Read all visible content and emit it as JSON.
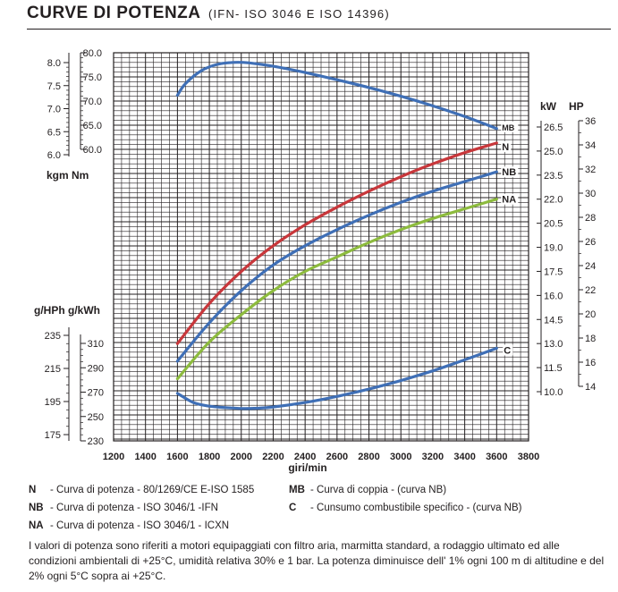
{
  "header": {
    "title": "CURVE DI POTENZA",
    "subtitle": "(IFN- ISO 3046 E ISO 14396)"
  },
  "chart_data": {
    "type": "line",
    "xlabel": "giri/min",
    "xlim": [
      1200,
      3800
    ],
    "x_ticks": [
      1200,
      1400,
      1600,
      1800,
      2000,
      2200,
      2400,
      2600,
      2800,
      3000,
      3200,
      3400,
      3600,
      3800
    ],
    "axes": {
      "torque_nm": {
        "ticks": [
          "80.0",
          "75.0",
          "70.0",
          "65.0",
          "60.0"
        ],
        "range": [
          60,
          80
        ]
      },
      "torque_kgm": {
        "ticks": [
          "8.0",
          "7.5",
          "7.0",
          "6.5",
          "6.0"
        ],
        "range": [
          6,
          8
        ]
      },
      "torque_units": "kgm   Nm",
      "consumption_units": "g/HPh g/kWh",
      "consumption_gkwh": {
        "ticks": [
          "310",
          "290",
          "270",
          "250",
          "230"
        ],
        "range": [
          230,
          310
        ]
      },
      "consumption_ghph": {
        "ticks": [
          "235",
          "215",
          "195",
          "175"
        ]
      },
      "power_kw": {
        "ticks": [
          "26.5",
          "25.0",
          "23.5",
          "22.0",
          "20.5",
          "19.0",
          "17.5",
          "16.0",
          "14.5",
          "13.0",
          "11.5",
          "10.0"
        ],
        "range": [
          10,
          26.5
        ]
      },
      "power_hp": {
        "ticks": [
          "36",
          "34",
          "32",
          "30",
          "28",
          "26",
          "24",
          "22",
          "20",
          "18",
          "16",
          "14"
        ],
        "range": [
          14,
          36
        ]
      },
      "power_units_kw": "kW",
      "power_units_hp": "HP"
    },
    "series": [
      {
        "name": "MB",
        "color": "#3f6fb6",
        "axis": "torque_nm",
        "x": [
          1600,
          1650,
          1750,
          1850,
          1950,
          2050,
          2200,
          2400,
          2600,
          2800,
          3000,
          3200,
          3400,
          3600
        ],
        "y": [
          71.2,
          73.6,
          76.3,
          77.6,
          78.0,
          77.9,
          77.2,
          75.9,
          74.4,
          72.8,
          71.0,
          69.0,
          66.8,
          64.3
        ]
      },
      {
        "name": "N",
        "color": "#c8373b",
        "axis": "power_kw",
        "x": [
          1600,
          1800,
          2000,
          2200,
          2400,
          2600,
          2800,
          3000,
          3200,
          3400,
          3600
        ],
        "y": [
          13.0,
          15.5,
          17.5,
          19.1,
          20.4,
          21.5,
          22.5,
          23.4,
          24.2,
          24.9,
          25.5
        ]
      },
      {
        "name": "NB",
        "color": "#3f6fb6",
        "axis": "power_kw",
        "x": [
          1600,
          1800,
          2000,
          2200,
          2400,
          2600,
          2800,
          3000,
          3200,
          3400,
          3600
        ],
        "y": [
          11.9,
          14.3,
          16.3,
          17.9,
          19.1,
          20.1,
          21.0,
          21.8,
          22.5,
          23.1,
          23.7
        ]
      },
      {
        "name": "NA",
        "color": "#8dbb3e",
        "axis": "power_kw",
        "x": [
          1600,
          1800,
          2000,
          2200,
          2400,
          2600,
          2800,
          3000,
          3200,
          3400,
          3600
        ],
        "y": [
          10.8,
          13.1,
          14.8,
          16.3,
          17.5,
          18.4,
          19.3,
          20.1,
          20.8,
          21.4,
          22.0
        ]
      },
      {
        "name": "C",
        "color": "#3f6fb6",
        "axis": "consumption_gkwh",
        "x": [
          1600,
          1700,
          1800,
          1900,
          2000,
          2100,
          2200,
          2400,
          2600,
          2800,
          3000,
          3200,
          3400,
          3600
        ],
        "y": [
          269,
          261.5,
          258.5,
          257.3,
          256.6,
          256.8,
          257.8,
          261.5,
          266.5,
          272.5,
          279.5,
          287.5,
          296.5,
          306
        ]
      }
    ],
    "curve_labels": [
      "MB",
      "N",
      "NB",
      "NA",
      "C"
    ],
    "grid": true
  },
  "legend": {
    "left": [
      {
        "code": "N",
        "text": "- Curva di potenza - 80/1269/CE E-ISO 1585"
      },
      {
        "code": "NB",
        "text": "- Curva di potenza - ISO 3046/1 -IFN"
      },
      {
        "code": "NA",
        "text": "- Curva di potenza - ISO 3046/1 - ICXN"
      }
    ],
    "right": [
      {
        "code": "MB",
        "text": "- Curva di coppia - (curva NB)"
      },
      {
        "code": "C",
        "text": "- Cunsumo combustibile specifico - (curva NB)"
      }
    ]
  },
  "note": "I valori di potenza sono riferiti a motori equipaggiati con filtro aria, marmitta standard, a rodaggio ultimato ed alle condizioni ambientali di +25°C, umidità relativa 30% e 1 bar. La potenza diminuisce dell' 1% ogni 100 m di altitudine e del 2% ogni 5°C sopra ai +25°C."
}
